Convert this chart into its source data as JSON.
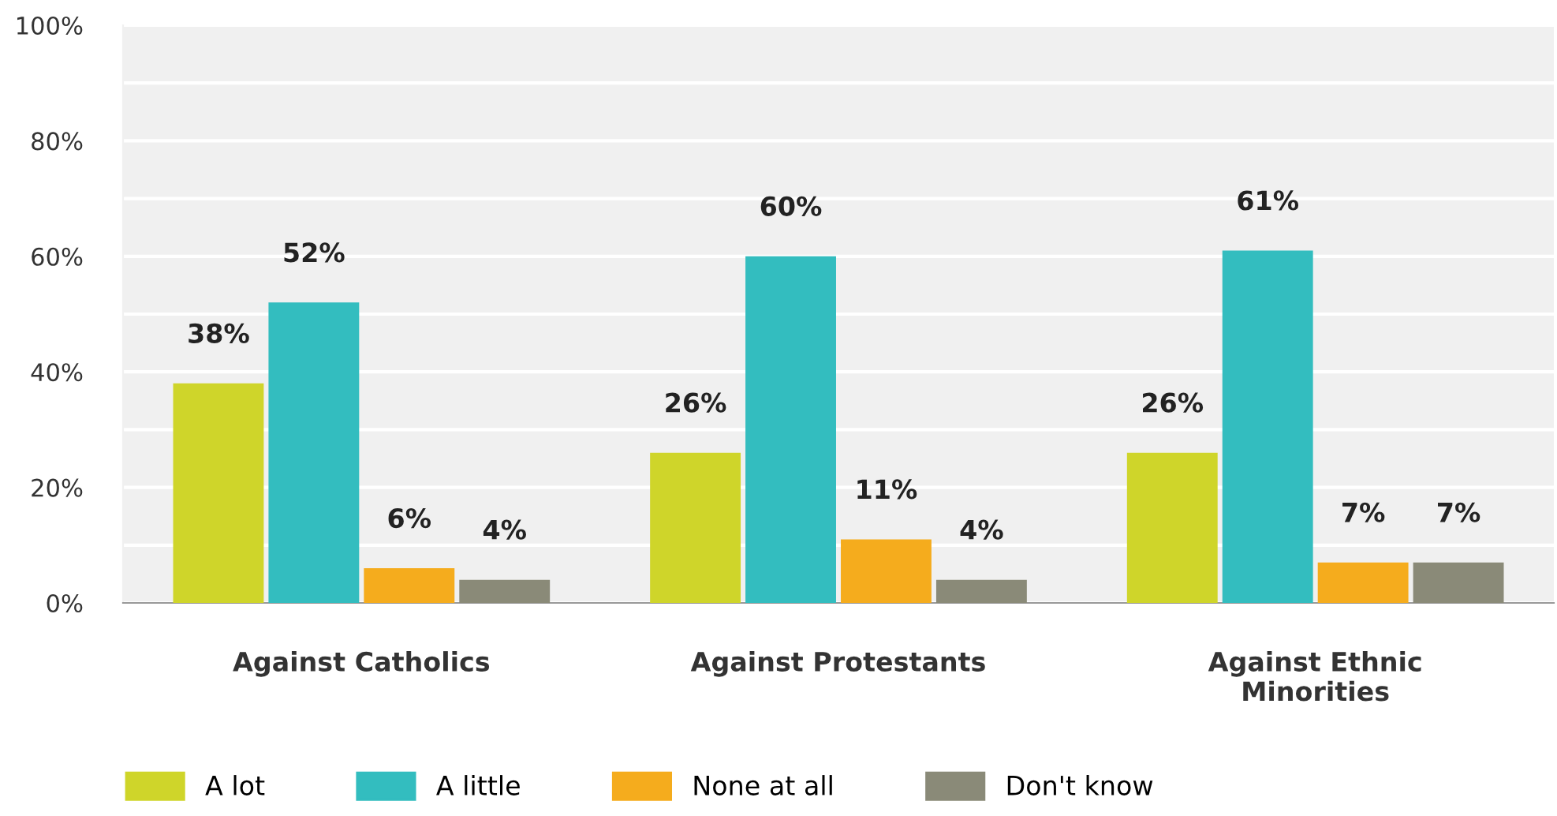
{
  "chart_data": {
    "type": "bar",
    "categories": [
      "Against Catholics",
      "Against Protestants",
      "Against Ethnic\nMinorities"
    ],
    "series": [
      {
        "name": "A lot",
        "color": "#cfd52a",
        "values": [
          38,
          26,
          26
        ],
        "value_labels": [
          "38%",
          "26%",
          "26%"
        ]
      },
      {
        "name": "A little",
        "color": "#33bdbf",
        "values": [
          52,
          60,
          61
        ],
        "value_labels": [
          "52%",
          "60%",
          "61%"
        ]
      },
      {
        "name": "None at all",
        "color": "#f5ac1d",
        "values": [
          6,
          11,
          7
        ],
        "value_labels": [
          "6%",
          "11%",
          "7%"
        ]
      },
      {
        "name": "Don't know",
        "color": "#8a8a78",
        "values": [
          4,
          4,
          7
        ],
        "value_labels": [
          "4%",
          "4%",
          "7%"
        ]
      }
    ],
    "ylim": [
      0,
      100
    ],
    "yticks": [
      {
        "value": 0,
        "label": "0%"
      },
      {
        "value": 10,
        "label": null
      },
      {
        "value": 20,
        "label": "20%"
      },
      {
        "value": 30,
        "label": null
      },
      {
        "value": 40,
        "label": "40%"
      },
      {
        "value": 50,
        "label": null
      },
      {
        "value": 60,
        "label": "60%"
      },
      {
        "value": 70,
        "label": null
      },
      {
        "value": 80,
        "label": "80%"
      },
      {
        "value": 90,
        "label": null
      },
      {
        "value": 100,
        "label": "100%"
      }
    ],
    "grid": "y",
    "legend": "bottom left"
  }
}
